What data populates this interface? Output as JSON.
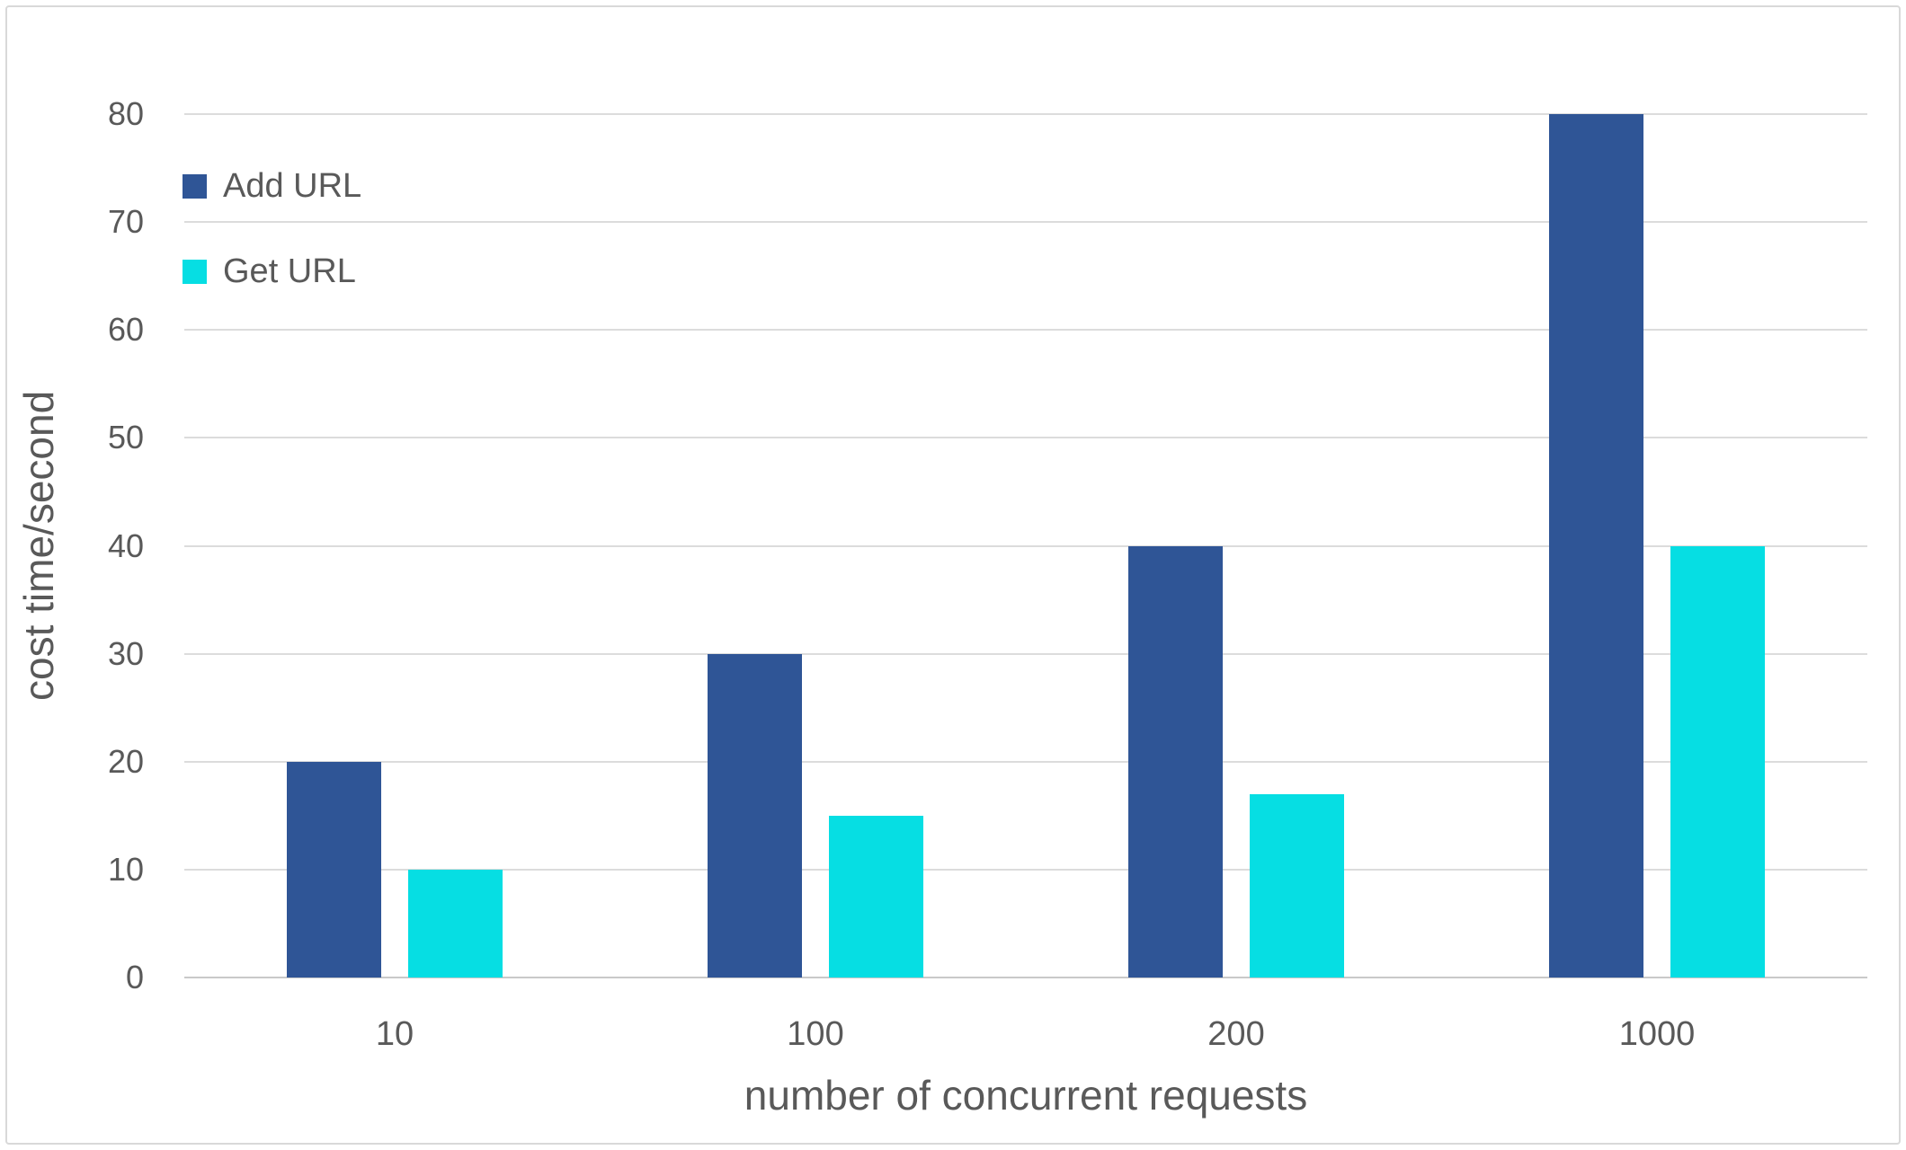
{
  "chart_data": {
    "type": "bar",
    "title": "",
    "categories": [
      "10",
      "100",
      "200",
      "1000"
    ],
    "series": [
      {
        "name": "Add URL",
        "color": "#2F5596",
        "values": [
          20,
          30,
          40,
          80
        ]
      },
      {
        "name": "Get URL",
        "color": "#06DEE3",
        "values": [
          10,
          15,
          17,
          40
        ]
      }
    ],
    "xlabel": "number of concurrent requests",
    "ylabel": "cost time/second",
    "ylim": [
      0,
      80
    ],
    "ytick_step": 10,
    "yticks": [
      "80",
      "70",
      "60",
      "50",
      "40",
      "30",
      "20",
      "10",
      "0"
    ],
    "grid": true,
    "legend_position": "upper-left"
  },
  "style": {
    "text_color": "#595959",
    "gridline_color": "#dcdcdc",
    "baseline_color": "#c9c9c9",
    "frame_border_color": "#d9d9d9",
    "background_color": "#ffffff"
  }
}
